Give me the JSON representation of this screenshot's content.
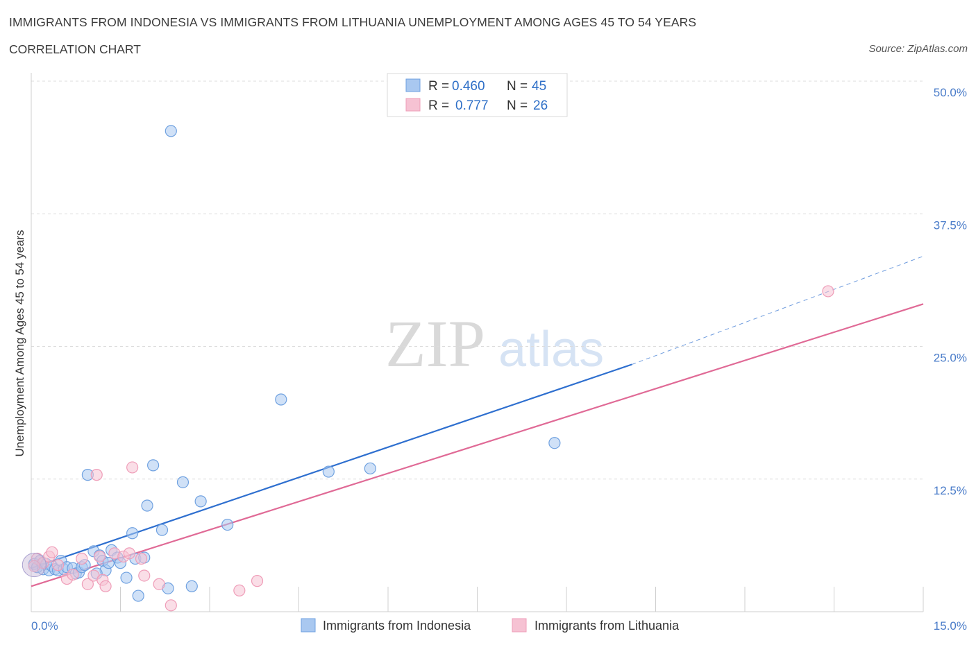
{
  "chart_data": {
    "type": "scatter",
    "title": "IMMIGRANTS FROM INDONESIA VS IMMIGRANTS FROM LITHUANIA UNEMPLOYMENT AMONG AGES 45 TO 54 YEARS",
    "subtitle": "CORRELATION CHART",
    "source": "Source: ZipAtlas.com",
    "xlabel": "",
    "ylabel": "Unemployment Among Ages 45 to 54 years",
    "xlim": [
      0,
      15
    ],
    "ylim": [
      0,
      50
    ],
    "x_tick_labels": [
      "0.0%",
      "15.0%"
    ],
    "y_ticks": [
      12.5,
      25.0,
      37.5,
      50.0
    ],
    "y_tick_labels": [
      "12.5%",
      "25.0%",
      "37.5%",
      "50.0%"
    ],
    "watermark": {
      "zip": "ZIP",
      "atlas": "atlas"
    },
    "legend": {
      "entries": [
        {
          "r_label": "R =",
          "r_value": "0.460",
          "n_label": "N =",
          "n_value": "45"
        },
        {
          "r_label": "R =",
          "r_value": "0.777",
          "n_label": "N =",
          "n_value": "26"
        }
      ]
    },
    "series": [
      {
        "name": "Immigrants from Indonesia",
        "color": "#6fa1e0",
        "fill": "#a9c8f0",
        "line_color": "#2e6fcf",
        "trend": {
          "x0": 0.0,
          "y0": 4.1,
          "x1": 10.1,
          "y1": 23.3,
          "dash_to_x": 15.0,
          "dash_to_y": 33.5
        },
        "points": [
          [
            0.05,
            4.5
          ],
          [
            0.1,
            4.2
          ],
          [
            0.15,
            4.8
          ],
          [
            0.2,
            4.0
          ],
          [
            0.25,
            4.5
          ],
          [
            0.3,
            3.9
          ],
          [
            0.35,
            4.3
          ],
          [
            0.4,
            4.0
          ],
          [
            0.45,
            3.9
          ],
          [
            0.5,
            4.8
          ],
          [
            0.55,
            4.0
          ],
          [
            0.6,
            4.2
          ],
          [
            0.7,
            4.1
          ],
          [
            0.75,
            3.6
          ],
          [
            0.8,
            3.7
          ],
          [
            0.85,
            4.2
          ],
          [
            0.9,
            4.4
          ],
          [
            0.95,
            12.9
          ],
          [
            1.05,
            5.7
          ],
          [
            1.15,
            5.3
          ],
          [
            1.2,
            4.8
          ],
          [
            1.25,
            3.9
          ],
          [
            1.3,
            4.6
          ],
          [
            1.35,
            5.8
          ],
          [
            1.45,
            5.1
          ],
          [
            1.5,
            4.6
          ],
          [
            1.6,
            3.2
          ],
          [
            1.7,
            7.4
          ],
          [
            1.75,
            5.0
          ],
          [
            1.8,
            1.5
          ],
          [
            1.9,
            5.1
          ],
          [
            1.95,
            10.0
          ],
          [
            2.05,
            13.8
          ],
          [
            2.2,
            7.7
          ],
          [
            2.3,
            2.2
          ],
          [
            2.35,
            45.3
          ],
          [
            2.55,
            12.2
          ],
          [
            2.7,
            2.4
          ],
          [
            2.85,
            10.4
          ],
          [
            3.3,
            8.2
          ],
          [
            4.2,
            20.0
          ],
          [
            5.0,
            13.2
          ],
          [
            5.7,
            13.5
          ],
          [
            8.8,
            15.9
          ],
          [
            1.1,
            3.6
          ]
        ]
      },
      {
        "name": "Immigrants from Lithuania",
        "color": "#ef9db8",
        "fill": "#f6c2d3",
        "line_color": "#e06a96",
        "trend": {
          "x0": 0.0,
          "y0": 2.4,
          "x1": 15.0,
          "y1": 29.0
        },
        "points": [
          [
            0.1,
            5.0
          ],
          [
            0.2,
            4.6
          ],
          [
            0.3,
            5.2
          ],
          [
            0.35,
            5.6
          ],
          [
            0.45,
            4.4
          ],
          [
            0.6,
            3.1
          ],
          [
            0.7,
            3.5
          ],
          [
            0.85,
            5.0
          ],
          [
            0.95,
            2.6
          ],
          [
            1.05,
            3.4
          ],
          [
            1.1,
            12.9
          ],
          [
            1.15,
            5.2
          ],
          [
            1.2,
            3.0
          ],
          [
            1.25,
            2.4
          ],
          [
            1.4,
            5.5
          ],
          [
            1.55,
            5.2
          ],
          [
            1.65,
            5.5
          ],
          [
            1.7,
            13.6
          ],
          [
            1.85,
            5.0
          ],
          [
            1.9,
            3.4
          ],
          [
            2.15,
            2.6
          ],
          [
            2.35,
            0.6
          ],
          [
            3.5,
            2.0
          ],
          [
            3.8,
            2.9
          ],
          [
            13.4,
            30.2
          ],
          [
            0.05,
            4.3
          ]
        ]
      }
    ]
  }
}
